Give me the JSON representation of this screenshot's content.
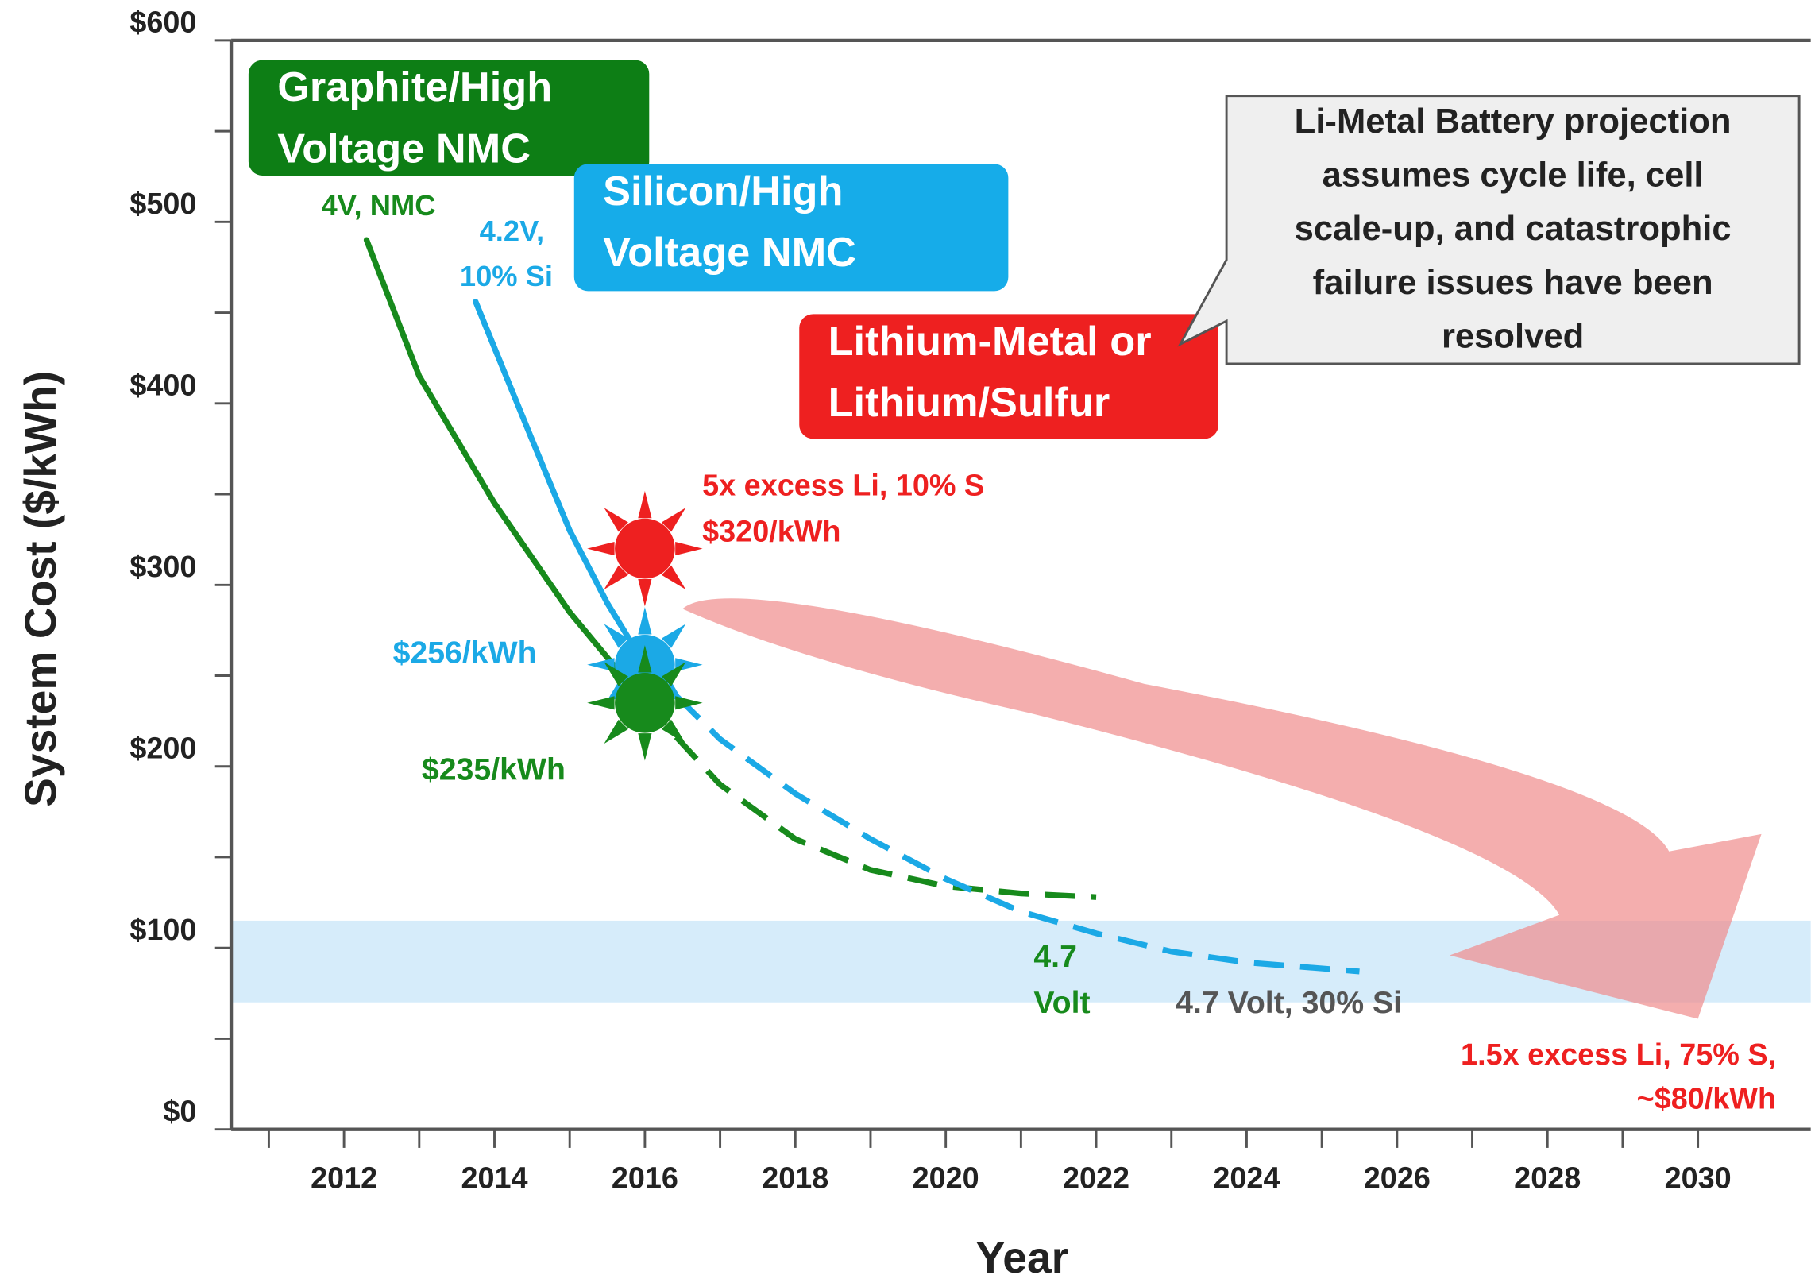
{
  "chart_data": {
    "type": "line",
    "x_label": "Year",
    "y_label": "System Cost ($/kWh)",
    "xlim": [
      2010.5,
      2031.5
    ],
    "ylim": [
      0,
      600
    ],
    "xticks": [
      2012,
      2014,
      2016,
      2018,
      2020,
      2022,
      2024,
      2026,
      2028,
      2030
    ],
    "xticks_minor": [
      2011,
      2013,
      2015,
      2017,
      2019,
      2021,
      2023,
      2025,
      2027,
      2029
    ],
    "yticks": [
      {
        "value": 0,
        "label": "$0"
      },
      {
        "value": 100,
        "label": "$100"
      },
      {
        "value": 200,
        "label": "$200"
      },
      {
        "value": 300,
        "label": "$300"
      },
      {
        "value": 400,
        "label": "$400"
      },
      {
        "value": 500,
        "label": "$500"
      },
      {
        "value": 600,
        "label": "$600"
      }
    ],
    "yticks_minor": [
      50,
      150,
      250,
      350,
      450,
      550
    ],
    "target_band": {
      "ylim": [
        70,
        115
      ],
      "color": "#d6ecfa"
    },
    "series": [
      {
        "name": [
          "Graphite/High",
          "Voltage NMC"
        ],
        "color": "#178a1c",
        "start_label": [
          "4V, NMC"
        ],
        "end_label": [
          "4.7",
          "Volt"
        ],
        "x": [
          2012.3,
          2013,
          2014,
          2015,
          2016
        ],
        "values": [
          490,
          415,
          345,
          285,
          235
        ],
        "projection_x": [
          2016,
          2017,
          2018,
          2019,
          2020,
          2021,
          2022
        ],
        "projection_values": [
          235,
          190,
          160,
          143,
          134,
          130,
          128
        ]
      },
      {
        "name": [
          "Silicon/High",
          "Voltage NMC"
        ],
        "color": "#1ba9e6",
        "start_label": [
          "4.2V,",
          "10% Si"
        ],
        "end_label": [
          "4.7 Volt, 30% Si"
        ],
        "x": [
          2013.75,
          2014.5,
          2015,
          2015.5,
          2016
        ],
        "values": [
          456,
          380,
          330,
          290,
          256
        ],
        "projection_x": [
          2016,
          2017,
          2018,
          2019,
          2020,
          2021,
          2022,
          2023,
          2024,
          2025.5
        ],
        "projection_values": [
          256,
          215,
          185,
          160,
          138,
          120,
          108,
          98,
          92,
          87
        ]
      }
    ],
    "markers": [
      {
        "x": 2016,
        "value": 320,
        "color": "#ee2020",
        "value_label": "$320/kWh",
        "note": "5x excess Li, 10% S"
      },
      {
        "x": 2016,
        "value": 256,
        "color": "#1ba9e6",
        "value_label": "$256/kWh"
      },
      {
        "x": 2016,
        "value": 235,
        "color": "#178a1c",
        "value_label": "$235/kWh"
      }
    ],
    "projection": {
      "name": [
        "Lithium-Metal or",
        "Lithium/Sulfur"
      ],
      "color": "#ee2020",
      "arrow_color": "#f08c8c",
      "x": [
        2016.5,
        2030
      ],
      "values": [
        290,
        80
      ],
      "note": "1.5x excess Li, 75% S,",
      "value_label": "~$80/kWh"
    },
    "callout": [
      "Li-Metal Battery projection",
      "assumes cycle life, cell",
      "scale-up, and catastrophic",
      "failure issues have been",
      "resolved"
    ]
  }
}
